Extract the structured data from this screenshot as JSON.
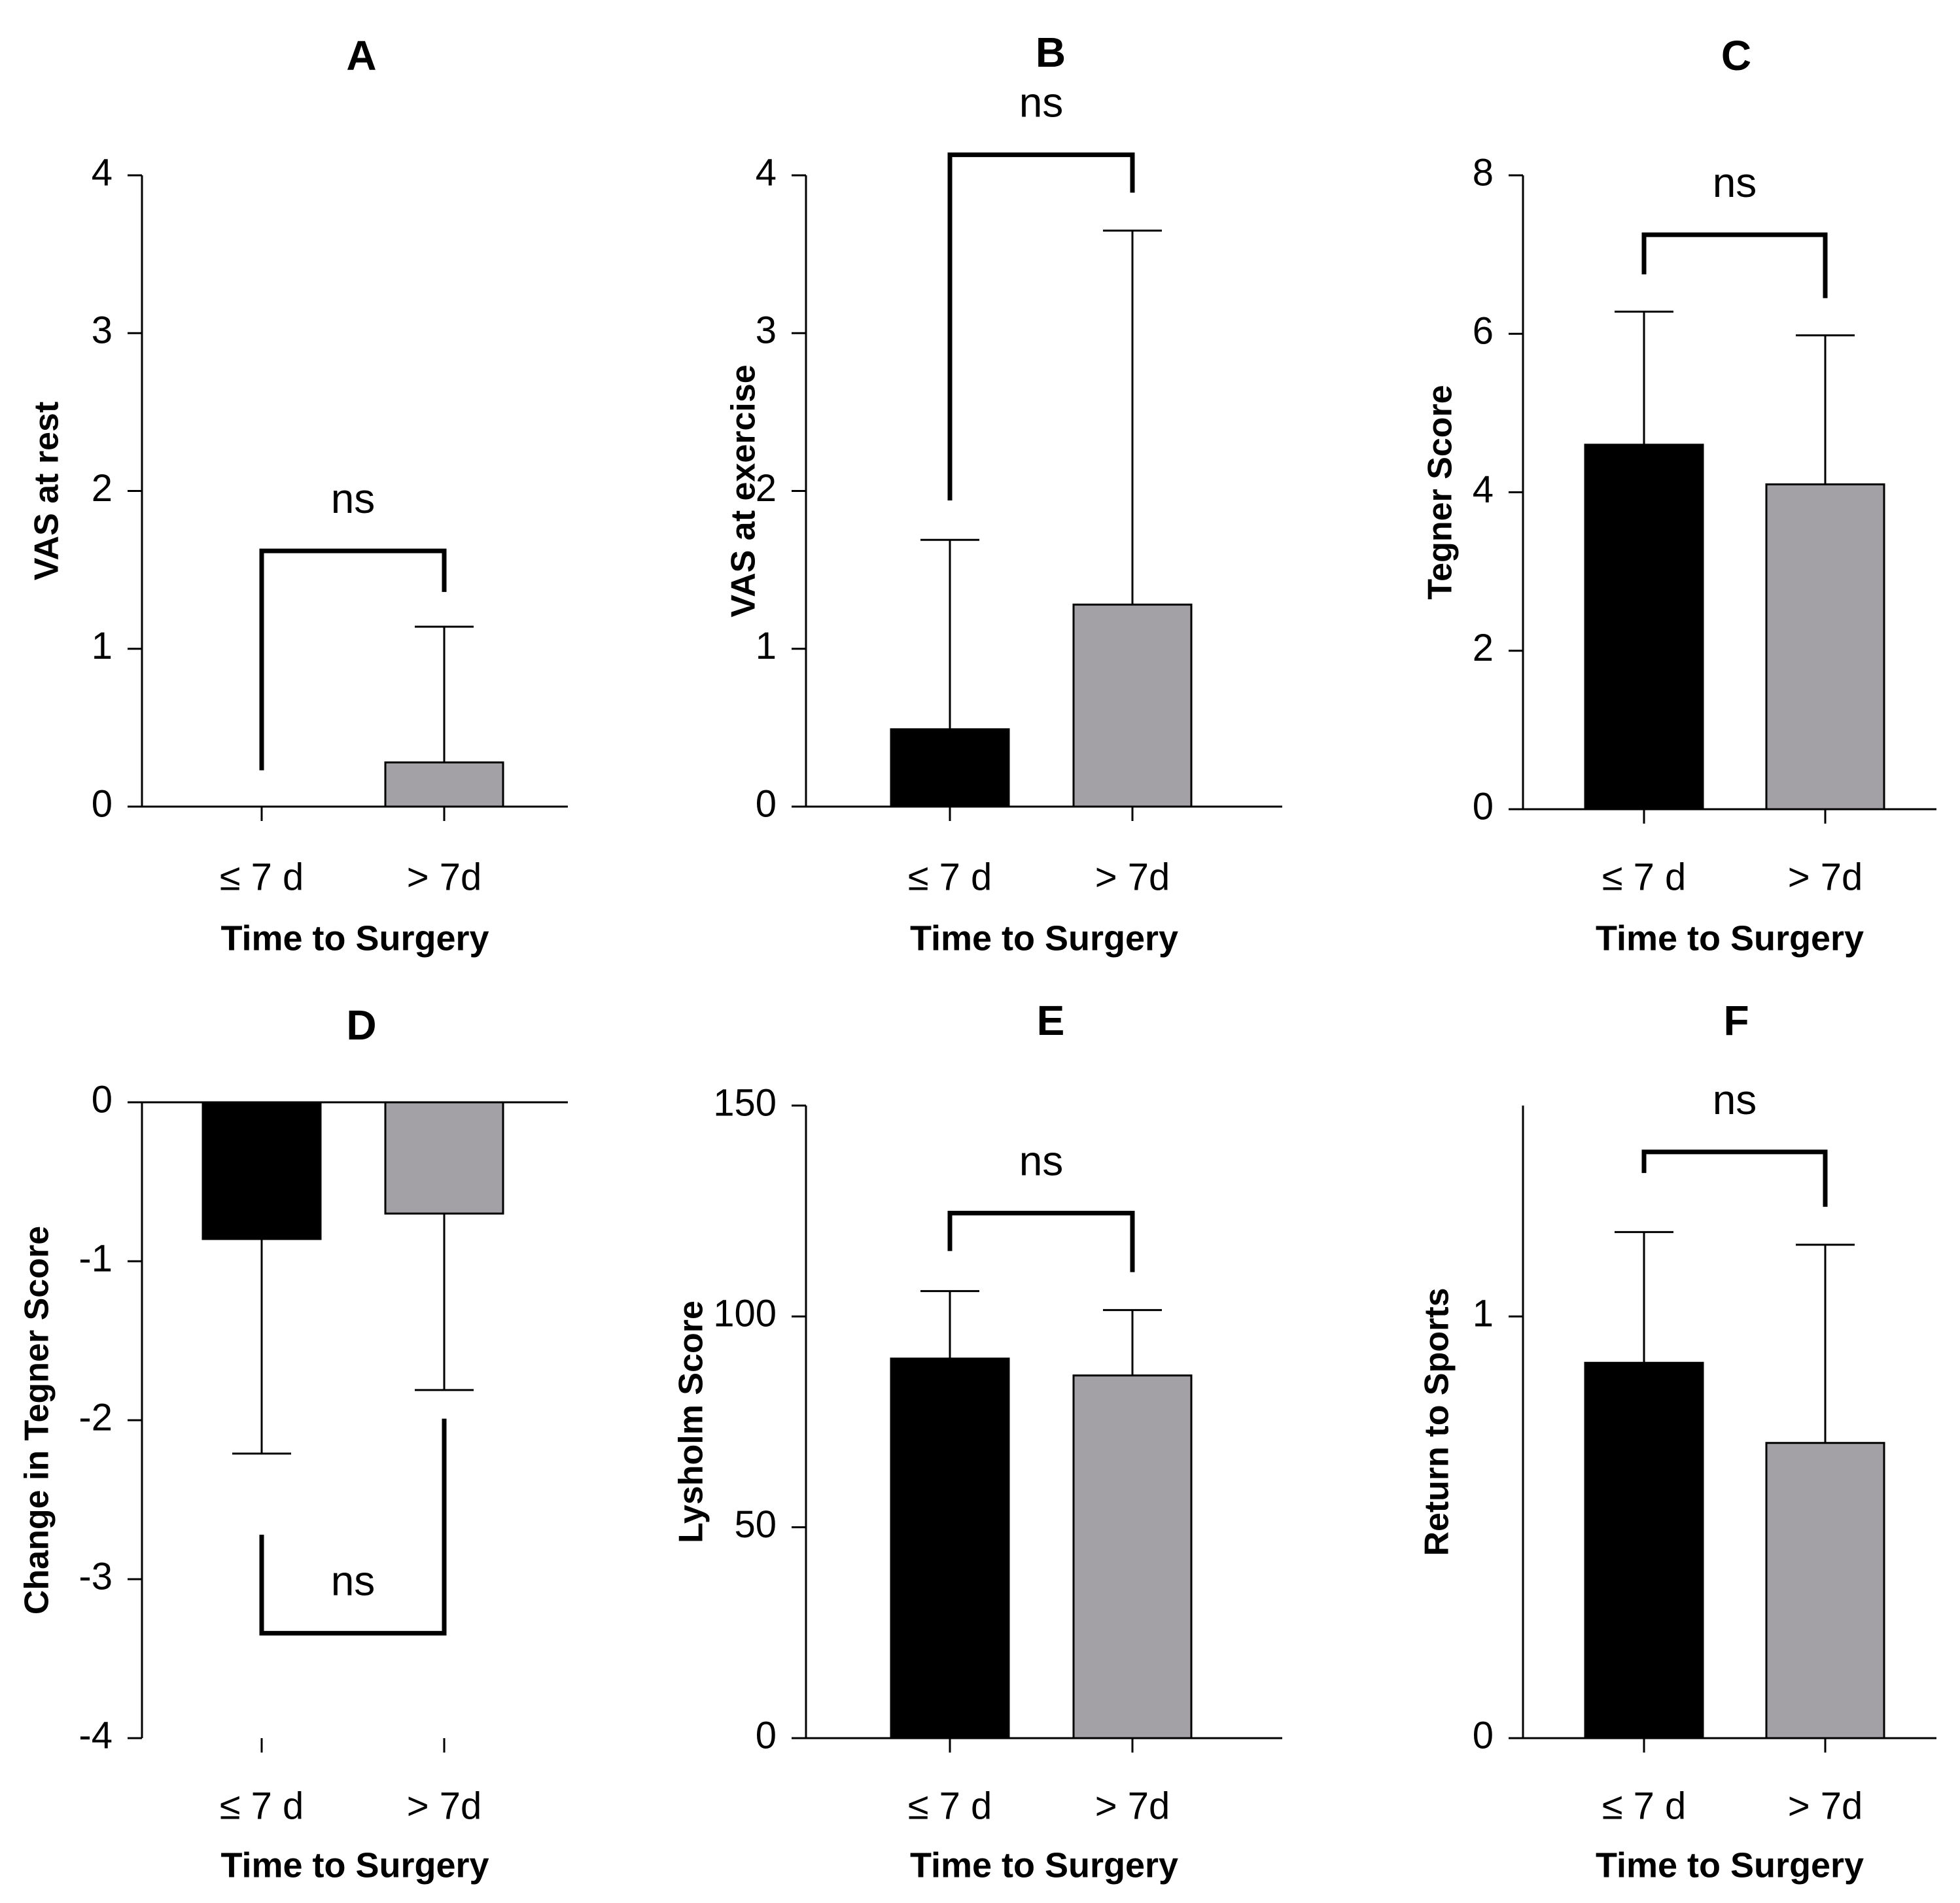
{
  "colors": {
    "group1": "#000000",
    "group2": "#a3a0a6",
    "axis": "#000000"
  },
  "chart_data": [
    {
      "panel": "A",
      "type": "bar",
      "title": "A",
      "xlabel": "Time to Surgery",
      "ylabel": "VAS at rest",
      "categories": [
        "≤ 7 d",
        "> 7d"
      ],
      "values": [
        0,
        0.28
      ],
      "error_upper": [
        0,
        1.14
      ],
      "ylim": [
        0,
        4
      ],
      "yticks": [
        0,
        1,
        2,
        3,
        4
      ],
      "ytick_labels": [
        "0",
        "1",
        "2",
        "3",
        "4"
      ],
      "significance": {
        "label": "ns",
        "bracket_y": 1.62,
        "left_end": 0.23,
        "right_end": 1.36,
        "direction": "down"
      }
    },
    {
      "panel": "B",
      "type": "bar",
      "title": "B",
      "xlabel": "Time to Surgery",
      "ylabel": "VAS at exercise",
      "categories": [
        "≤ 7 d",
        "> 7d"
      ],
      "values": [
        0.49,
        1.28
      ],
      "error_upper": [
        1.69,
        3.65
      ],
      "ylim": [
        0,
        4
      ],
      "yticks": [
        0,
        1,
        2,
        3,
        4
      ],
      "ytick_labels": [
        "0",
        "1",
        "2",
        "3",
        "4"
      ],
      "significance": {
        "label": "ns",
        "bracket_y": 4.13,
        "left_end": 1.94,
        "right_end": 3.89,
        "direction": "down"
      }
    },
    {
      "panel": "C",
      "type": "bar",
      "title": "C",
      "xlabel": "Time to Surgery",
      "ylabel": "Tegner Score",
      "categories": [
        "≤ 7 d",
        "> 7d"
      ],
      "values": [
        4.6,
        4.1
      ],
      "error_upper": [
        6.28,
        5.98
      ],
      "ylim": [
        0,
        8
      ],
      "yticks": [
        0,
        2,
        4,
        6,
        8
      ],
      "ytick_labels": [
        "0",
        "2",
        "4",
        "6",
        "8"
      ],
      "significance": {
        "label": "ns",
        "bracket_y": 7.25,
        "left_end": 6.75,
        "right_end": 6.45,
        "direction": "down"
      }
    },
    {
      "panel": "D",
      "type": "bar",
      "title": "D",
      "xlabel": "Time to Surgery",
      "ylabel": "Change in Tegner Score",
      "categories": [
        "≤ 7 d",
        "> 7d"
      ],
      "values": [
        -0.86,
        -0.7
      ],
      "error_upper": [
        -2.21,
        -1.81
      ],
      "ylim": [
        -4,
        0
      ],
      "yticks": [
        0,
        -1,
        -2,
        -3,
        -4
      ],
      "ytick_labels": [
        "0",
        "-1",
        "-2",
        "-3",
        "-4"
      ],
      "significance": {
        "label": "ns",
        "bracket_y": -3.34,
        "left_end": -2.72,
        "right_end": -1.99,
        "direction": "up"
      }
    },
    {
      "panel": "E",
      "type": "bar",
      "title": "E",
      "xlabel": "Time to Surgery",
      "ylabel": "Lysholm Score",
      "categories": [
        "≤ 7 d",
        "> 7d"
      ],
      "values": [
        90,
        86
      ],
      "error_upper": [
        106,
        101.5
      ],
      "ylim": [
        0,
        150
      ],
      "yticks": [
        0,
        50,
        100,
        150
      ],
      "ytick_labels": [
        "0",
        "50",
        "100",
        "150"
      ],
      "significance": {
        "label": "ns",
        "bracket_y": 124.5,
        "left_end": 115.5,
        "right_end": 110.5,
        "direction": "down"
      }
    },
    {
      "panel": "F",
      "type": "bar",
      "title": "F",
      "xlabel": "Time to Surgery",
      "ylabel": "Return to Sports",
      "categories": [
        "≤ 7 d",
        "> 7d"
      ],
      "values": [
        0.89,
        0.7
      ],
      "error_upper": [
        1.2,
        1.17
      ],
      "ylim": [
        0,
        1.5
      ],
      "yticks": [
        0,
        1
      ],
      "ytick_labels": [
        "0",
        "1"
      ],
      "significance": {
        "label": "ns",
        "bracket_y": 1.39,
        "left_end": 1.34,
        "right_end": 1.26,
        "direction": "down"
      }
    }
  ]
}
